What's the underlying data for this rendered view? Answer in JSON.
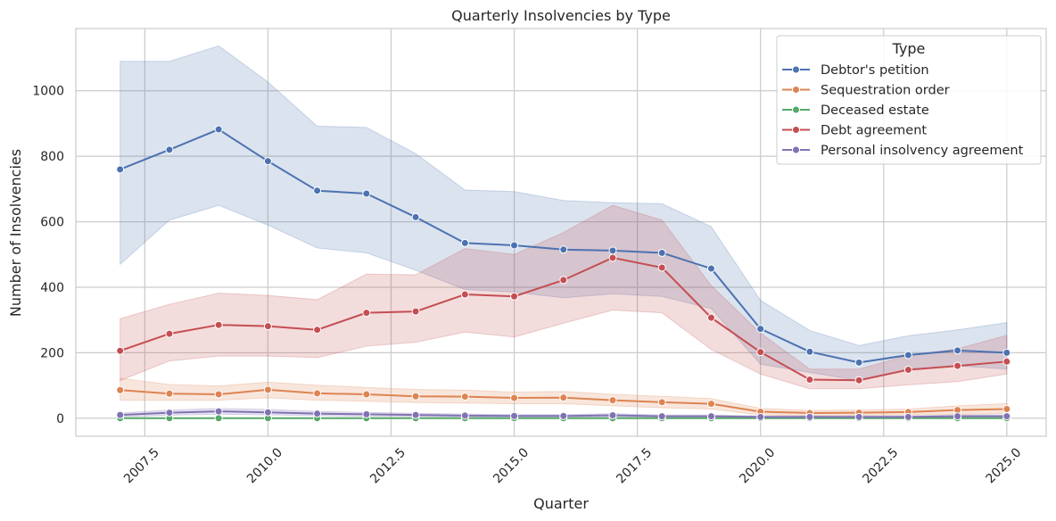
{
  "chart_data": {
    "type": "line",
    "title": "Quarterly Insolvencies by Type",
    "xlabel": "Quarter",
    "ylabel": "Number of Insolvencies",
    "xlim": [
      2006.1,
      2025.8
    ],
    "ylim": [
      -55,
      1190
    ],
    "x_ticks": [
      2007.5,
      2010.0,
      2012.5,
      2015.0,
      2017.5,
      2020.0,
      2022.5,
      2025.0
    ],
    "x_tick_labels": [
      "2007.5",
      "2010.0",
      "2012.5",
      "2015.0",
      "2017.5",
      "2020.0",
      "2022.5",
      "2025.0"
    ],
    "y_ticks": [
      0,
      200,
      400,
      600,
      800,
      1000
    ],
    "y_tick_labels": [
      "0",
      "200",
      "400",
      "600",
      "800",
      "1000"
    ],
    "grid": true,
    "legend": {
      "title": "Type",
      "placement": "top-right"
    },
    "x": [
      2007,
      2008,
      2009,
      2010,
      2011,
      2012,
      2013,
      2014,
      2015,
      2016,
      2017,
      2018,
      2019,
      2020,
      2021,
      2022,
      2023,
      2024,
      2025
    ],
    "series": [
      {
        "name": "Debtor's petition",
        "color": "#4c72b0",
        "values": [
          760,
          820,
          882,
          785,
          695,
          686,
          614,
          535,
          528,
          515,
          512,
          505,
          457,
          273,
          203,
          170,
          193,
          207,
          200
        ],
        "ci_low": [
          470,
          605,
          650,
          590,
          520,
          505,
          452,
          393,
          385,
          368,
          380,
          372,
          335,
          165,
          140,
          115,
          150,
          160,
          150
        ],
        "ci_high": [
          1090,
          1090,
          1137,
          1027,
          892,
          888,
          808,
          697,
          692,
          665,
          658,
          655,
          585,
          360,
          268,
          222,
          252,
          270,
          292
        ]
      },
      {
        "name": "Sequestration order",
        "color": "#dd8452",
        "values": [
          86,
          75,
          73,
          87,
          76,
          73,
          67,
          66,
          62,
          63,
          55,
          49,
          44,
          20,
          16,
          17,
          19,
          25,
          28
        ],
        "ci_low": [
          55,
          55,
          55,
          62,
          55,
          52,
          48,
          46,
          44,
          44,
          38,
          32,
          28,
          10,
          8,
          9,
          10,
          12,
          14
        ],
        "ci_high": [
          122,
          103,
          99,
          110,
          101,
          94,
          88,
          86,
          80,
          82,
          73,
          67,
          60,
          30,
          24,
          25,
          28,
          38,
          45
        ]
      },
      {
        "name": "Deceased estate",
        "color": "#55a868",
        "values": [
          0,
          0,
          0,
          0,
          0,
          0,
          0,
          0,
          0,
          0,
          0,
          0,
          0,
          0,
          0,
          0,
          0,
          0,
          0
        ],
        "ci_low": [
          0,
          0,
          0,
          0,
          0,
          0,
          0,
          0,
          0,
          0,
          0,
          0,
          0,
          0,
          0,
          0,
          0,
          0,
          0
        ],
        "ci_high": [
          0,
          0,
          0,
          0,
          0,
          0,
          0,
          0,
          0,
          0,
          0,
          0,
          0,
          0,
          0,
          0,
          0,
          0,
          0
        ]
      },
      {
        "name": "Debt agreement",
        "color": "#c44e52",
        "values": [
          206,
          258,
          285,
          281,
          270,
          322,
          326,
          378,
          372,
          422,
          490,
          460,
          307,
          202,
          118,
          116,
          148,
          160,
          173
        ],
        "ci_low": [
          115,
          175,
          190,
          190,
          185,
          220,
          232,
          263,
          248,
          290,
          330,
          322,
          210,
          135,
          90,
          90,
          102,
          112,
          135
        ],
        "ci_high": [
          304,
          348,
          382,
          375,
          362,
          440,
          438,
          518,
          500,
          567,
          650,
          605,
          405,
          260,
          150,
          150,
          192,
          212,
          253
        ]
      },
      {
        "name": "Personal insolvency agreement",
        "color": "#8172b3",
        "values": [
          10,
          17,
          21,
          18,
          14,
          12,
          10,
          8,
          7,
          7,
          9,
          6,
          6,
          4,
          4,
          4,
          4,
          6,
          6
        ],
        "ci_low": [
          4,
          9,
          12,
          10,
          8,
          6,
          5,
          4,
          3,
          3,
          4,
          3,
          3,
          1,
          1,
          1,
          1,
          2,
          2
        ],
        "ci_high": [
          16,
          25,
          30,
          27,
          21,
          18,
          15,
          13,
          11,
          11,
          14,
          10,
          10,
          7,
          7,
          7,
          7,
          10,
          10
        ]
      }
    ]
  }
}
